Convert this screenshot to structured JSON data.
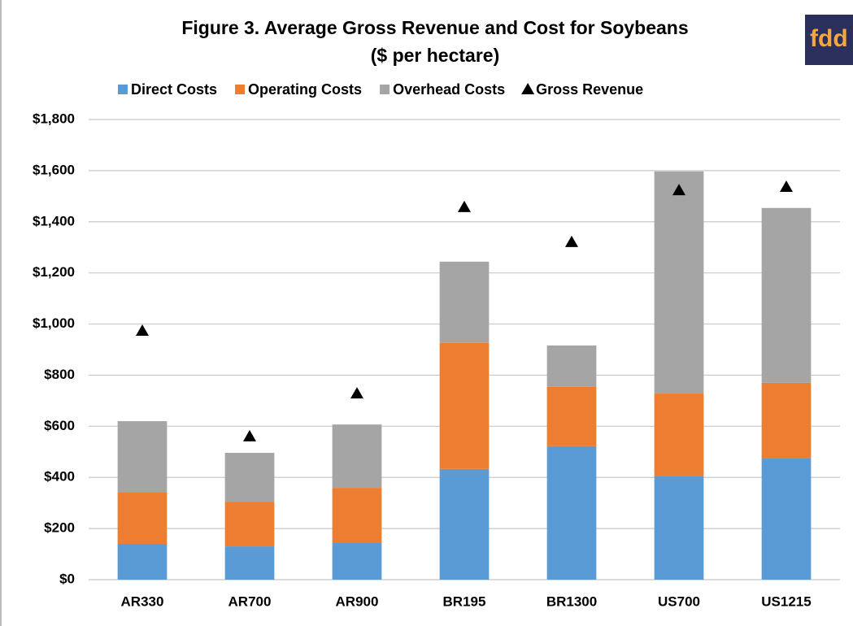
{
  "chart_data": {
    "type": "bar",
    "stacked": true,
    "title": "Figure 3. Average Gross Revenue and Cost for Soybeans",
    "subtitle": "($ per hectare)",
    "logo": "fdd",
    "categories": [
      "AR330",
      "AR700",
      "AR900",
      "BR195",
      "BR1300",
      "US700",
      "US1215"
    ],
    "series": [
      {
        "name": "Direct Costs",
        "color": "#5b9bd5",
        "values": [
          140,
          130,
          146,
          433,
          522,
          404,
          474
        ]
      },
      {
        "name": "Operating Costs",
        "color": "#ed7d31",
        "values": [
          203,
          175,
          213,
          493,
          232,
          324,
          296
        ]
      },
      {
        "name": "Overhead Costs",
        "color": "#a5a5a5",
        "values": [
          277,
          191,
          248,
          318,
          162,
          869,
          684
        ]
      },
      {
        "name": "Gross Revenue",
        "color": "#000000",
        "type": "scatter",
        "marker": "triangle",
        "values": [
          973,
          560,
          728,
          1457,
          1320,
          1523,
          1536
        ]
      }
    ],
    "ylim": [
      0,
      1800
    ],
    "yticks": [
      {
        "value": 0,
        "label": "$0"
      },
      {
        "value": 200,
        "label": "$200"
      },
      {
        "value": 400,
        "label": "$400"
      },
      {
        "value": 600,
        "label": "$600"
      },
      {
        "value": 800,
        "label": "$800"
      },
      {
        "value": 1000,
        "label": "$1,000"
      },
      {
        "value": 1200,
        "label": "$1,200"
      },
      {
        "value": 1400,
        "label": "$1,400"
      },
      {
        "value": 1600,
        "label": "$1,600"
      },
      {
        "value": 1800,
        "label": "$1,800"
      }
    ],
    "grid": true,
    "legend": "top"
  }
}
